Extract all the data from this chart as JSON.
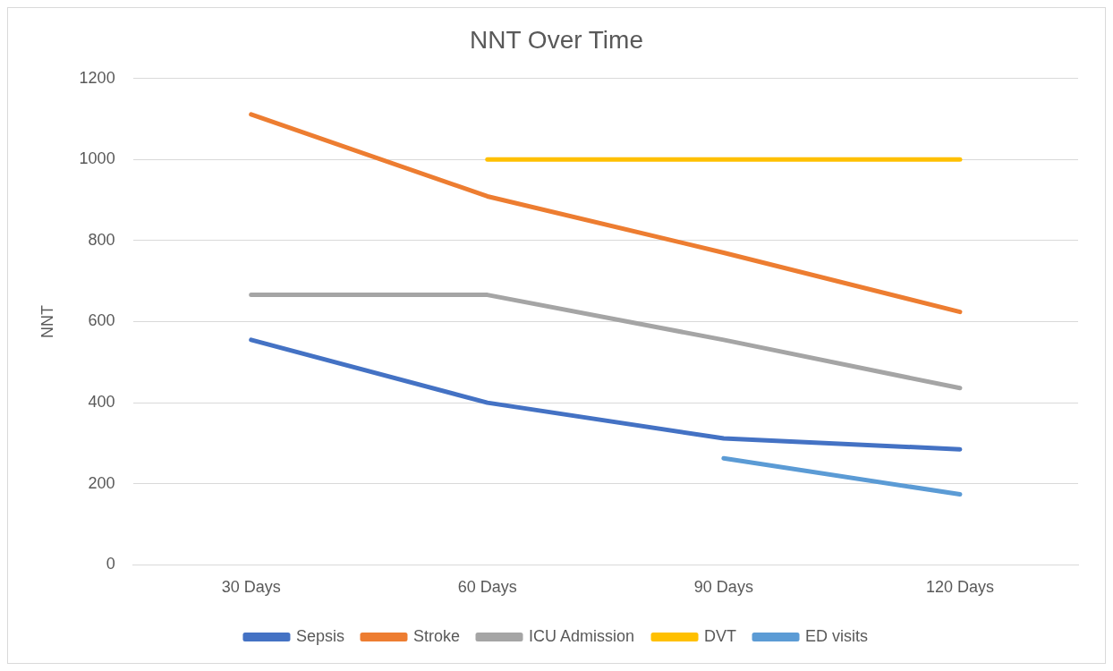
{
  "chart_data": {
    "type": "line",
    "title": "NNT Over Time",
    "ylabel": "NNT",
    "categories": [
      "30 Days",
      "60 Days",
      "90 Days",
      "120 Days"
    ],
    "series": [
      {
        "name": "Sepsis",
        "color": "#4472c4",
        "values": [
          555,
          400,
          312,
          285
        ]
      },
      {
        "name": "Stroke",
        "color": "#ed7d31",
        "values": [
          1111,
          909,
          770,
          624
        ]
      },
      {
        "name": "ICU Admission",
        "color": "#a5a5a5",
        "values": [
          666,
          666,
          555,
          436
        ]
      },
      {
        "name": "DVT",
        "color": "#ffc000",
        "values": [
          null,
          1000,
          1000,
          1000
        ]
      },
      {
        "name": "ED visits",
        "color": "#5b9bd5",
        "values": [
          null,
          null,
          263,
          174
        ]
      }
    ],
    "ylim": [
      0,
      1200
    ],
    "yticks": [
      0,
      200,
      400,
      600,
      800,
      1000,
      1200
    ],
    "grid": "y",
    "legend": "bottom",
    "marker": "none",
    "line_style": "solid"
  }
}
